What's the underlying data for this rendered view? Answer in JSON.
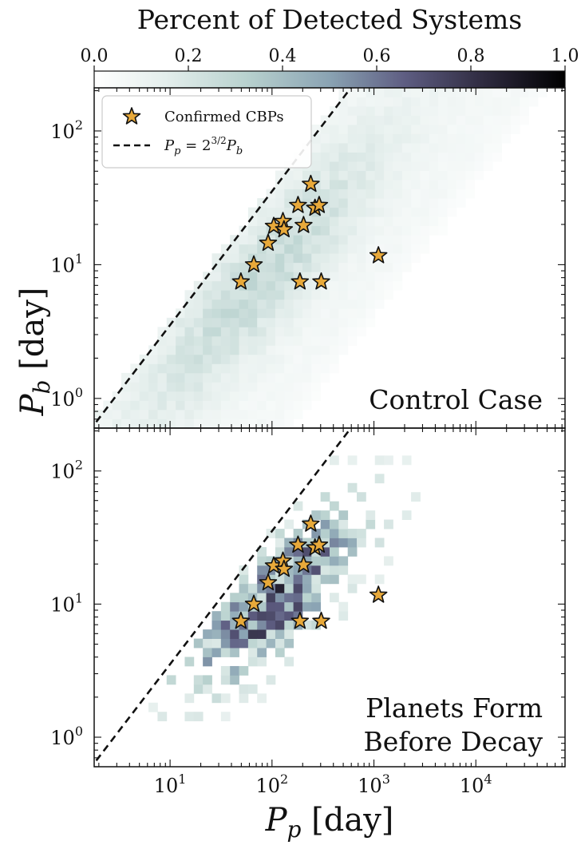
{
  "chart_data": [
    {
      "type": "heatmap",
      "title": "Control Case",
      "ylabel": "P_b [day]",
      "xscale": "log",
      "yscale": "log",
      "xlim": [
        1.8,
        75000
      ],
      "ylim": [
        0.6,
        210
      ],
      "xticks": [
        {
          "value": 10,
          "label_base": "10",
          "label_exp": "1"
        },
        {
          "value": 100,
          "label_base": "10",
          "label_exp": "2"
        },
        {
          "value": 1000,
          "label_base": "10",
          "label_exp": "3"
        },
        {
          "value": 10000,
          "label_base": "10",
          "label_exp": "4"
        }
      ],
      "yticks": [
        {
          "value": 1,
          "label_base": "10",
          "label_exp": "0"
        },
        {
          "value": 10,
          "label_base": "10",
          "label_exp": "1"
        },
        {
          "value": 100,
          "label_base": "10",
          "label_exp": "2"
        }
      ],
      "heat_min": 0.0,
      "heat_max": 1.0,
      "density_summary": "smooth band of low detection fraction (about 0.05–0.3) lying below the dashed line, from P_p≈5 d / P_b≈0.6 d up to P_p≈2000 d / P_b≈150 d",
      "legend_position": "top-left"
    },
    {
      "type": "heatmap",
      "title": "Planets Form\nBefore Decay",
      "title_lines": [
        "Planets Form",
        "Before Decay"
      ],
      "xlabel": "P_p [day]",
      "xscale": "log",
      "yscale": "log",
      "xlim": [
        1.8,
        75000
      ],
      "ylim": [
        0.6,
        210
      ],
      "xticks": [
        {
          "value": 10,
          "label_base": "10",
          "label_exp": "1"
        },
        {
          "value": 100,
          "label_base": "10",
          "label_exp": "2"
        },
        {
          "value": 1000,
          "label_base": "10",
          "label_exp": "3"
        },
        {
          "value": 10000,
          "label_base": "10",
          "label_exp": "4"
        }
      ],
      "yticks": [
        {
          "value": 1,
          "label_base": "10",
          "label_exp": "0"
        },
        {
          "value": 10,
          "label_base": "10",
          "label_exp": "1"
        },
        {
          "value": 100,
          "label_base": "10",
          "label_exp": "2"
        }
      ],
      "heat_min": 0.0,
      "heat_max": 1.0,
      "density_summary": "sparse, noisy cells with higher detection fractions (up to ~0.95) concentrated near P_p≈40–800 d, P_b≈3–60 d"
    }
  ],
  "colorbar": {
    "label": "Percent of Detected Systems",
    "ticks": [
      "0.0",
      "0.2",
      "0.4",
      "0.6",
      "0.8",
      "1.0"
    ],
    "tick_values": [
      0.0,
      0.2,
      0.4,
      0.6,
      0.8,
      1.0
    ],
    "colormap": [
      "#ffffff",
      "#e4eeec",
      "#b9d2cf",
      "#8aa3b3",
      "#5e5d82",
      "#2e2a3f",
      "#000000"
    ]
  },
  "confirmed_cbps": [
    {
      "p_p": 49.5,
      "p_b": 7.45
    },
    {
      "p_p": 66.3,
      "p_b": 10.0
    },
    {
      "p_p": 91.6,
      "p_b": 14.5
    },
    {
      "p_p": 104.0,
      "p_b": 19.4
    },
    {
      "p_p": 128.0,
      "p_b": 21.1
    },
    {
      "p_p": 131.0,
      "p_b": 18.3
    },
    {
      "p_p": 180.0,
      "p_b": 27.8
    },
    {
      "p_p": 188.0,
      "p_b": 7.45
    },
    {
      "p_p": 204.0,
      "p_b": 19.7
    },
    {
      "p_p": 240.0,
      "p_b": 40.0
    },
    {
      "p_p": 264.0,
      "p_b": 26.5
    },
    {
      "p_p": 290.0,
      "p_b": 27.8
    },
    {
      "p_p": 304.0,
      "p_b": 7.45
    },
    {
      "p_p": 1107.0,
      "p_b": 11.7
    }
  ],
  "reference_line": {
    "label": "P_p = 2^{3/2} P_b",
    "slope_factor": 2.828
  },
  "legend": {
    "stars_label": "Confirmed CBPs",
    "line_label_lhs": "P",
    "line_label_lhs_sub": "p",
    "line_label_eq": " = 2",
    "line_label_exp": "3/2",
    "line_label_rhs": "P",
    "line_label_rhs_sub": "b"
  },
  "axis_labels": {
    "y_main": "P",
    "y_sub": "b",
    "y_unit": " [day]",
    "x_main": "P",
    "x_sub": "p",
    "x_unit": " [day]"
  },
  "colors": {
    "star_fill": "#e8a93a",
    "star_edge": "#111111",
    "line": "#111111"
  }
}
